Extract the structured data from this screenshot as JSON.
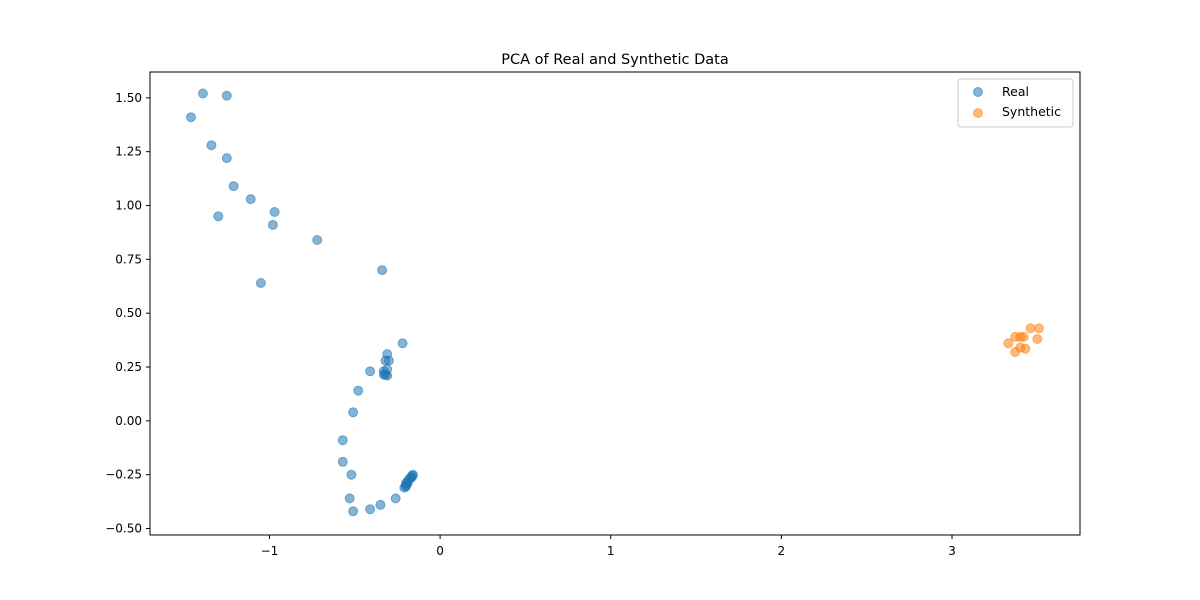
{
  "chart_data": {
    "type": "scatter",
    "title": "PCA of Real and Synthetic Data",
    "xlabel": "",
    "ylabel": "",
    "xlim": [
      -1.7,
      3.75
    ],
    "ylim": [
      -0.53,
      1.62
    ],
    "xticks": [
      -1,
      0,
      1,
      2,
      3
    ],
    "xtick_labels": [
      "−1",
      "0",
      "1",
      "2",
      "3"
    ],
    "yticks": [
      -0.5,
      -0.25,
      0.0,
      0.25,
      0.5,
      0.75,
      1.0,
      1.25,
      1.5
    ],
    "ytick_labels": [
      "−0.50",
      "−0.25",
      "0.00",
      "0.25",
      "0.50",
      "0.75",
      "1.00",
      "1.25",
      "1.50"
    ],
    "grid": false,
    "legend": "top-right",
    "series": [
      {
        "name": "Real",
        "color": "#1f77b4",
        "points": [
          [
            -1.46,
            1.41
          ],
          [
            -1.39,
            1.52
          ],
          [
            -1.25,
            1.51
          ],
          [
            -1.34,
            1.28
          ],
          [
            -1.25,
            1.22
          ],
          [
            -1.21,
            1.09
          ],
          [
            -1.11,
            1.03
          ],
          [
            -1.3,
            0.95
          ],
          [
            -0.97,
            0.97
          ],
          [
            -0.98,
            0.91
          ],
          [
            -0.72,
            0.84
          ],
          [
            -0.34,
            0.7
          ],
          [
            -1.05,
            0.64
          ],
          [
            -0.22,
            0.36
          ],
          [
            -0.31,
            0.31
          ],
          [
            -0.3,
            0.28
          ],
          [
            -0.32,
            0.28
          ],
          [
            -0.31,
            0.24
          ],
          [
            -0.41,
            0.23
          ],
          [
            -0.33,
            0.23
          ],
          [
            -0.33,
            0.215
          ],
          [
            -0.32,
            0.215
          ],
          [
            -0.31,
            0.21
          ],
          [
            -0.48,
            0.14
          ],
          [
            -0.51,
            0.04
          ],
          [
            -0.57,
            -0.09
          ],
          [
            -0.57,
            -0.19
          ],
          [
            -0.52,
            -0.25
          ],
          [
            -0.53,
            -0.36
          ],
          [
            -0.51,
            -0.42
          ],
          [
            -0.41,
            -0.41
          ],
          [
            -0.35,
            -0.39
          ],
          [
            -0.26,
            -0.36
          ],
          [
            -0.21,
            -0.31
          ],
          [
            -0.2,
            -0.3
          ],
          [
            -0.2,
            -0.29
          ],
          [
            -0.19,
            -0.28
          ],
          [
            -0.18,
            -0.27
          ],
          [
            -0.17,
            -0.26
          ],
          [
            -0.16,
            -0.25
          ],
          [
            -0.16,
            -0.255
          ],
          [
            -0.17,
            -0.265
          ],
          [
            -0.19,
            -0.29
          ],
          [
            -0.2,
            -0.305
          ]
        ]
      },
      {
        "name": "Synthetic",
        "color": "#ff7f0e",
        "points": [
          [
            3.33,
            0.36
          ],
          [
            3.37,
            0.39
          ],
          [
            3.4,
            0.39
          ],
          [
            3.42,
            0.39
          ],
          [
            3.46,
            0.43
          ],
          [
            3.51,
            0.43
          ],
          [
            3.5,
            0.38
          ],
          [
            3.4,
            0.34
          ],
          [
            3.43,
            0.335
          ],
          [
            3.37,
            0.32
          ]
        ]
      }
    ]
  }
}
